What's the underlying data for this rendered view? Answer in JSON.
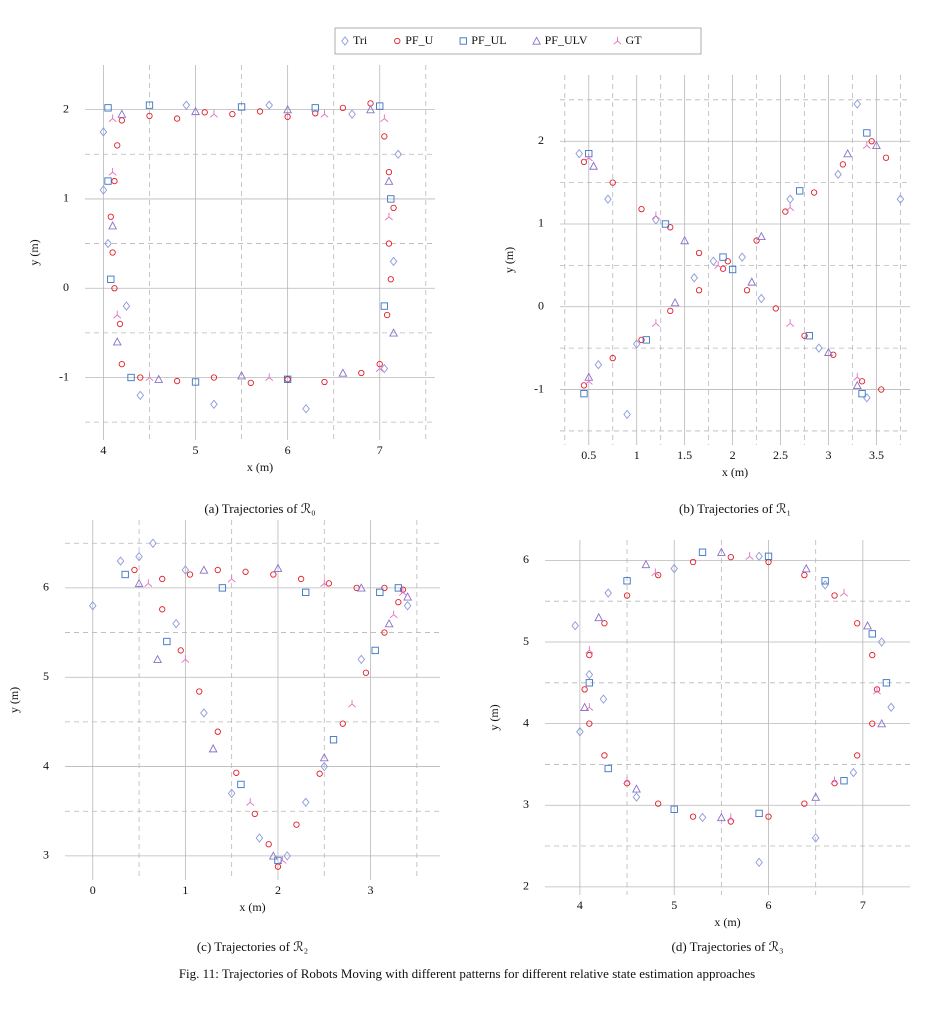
{
  "caption": "Fig. 11: Trajectories of Robots Moving with different patterns for different relative state estimation approaches",
  "chart_data": [
    {
      "type": "scatter",
      "caption": "(a) Trajectories of ℛ₀",
      "xlabel": "x (m)",
      "ylabel": "y (m)",
      "xlim": [
        3.8,
        7.6
      ],
      "ylim": [
        -1.7,
        2.5
      ],
      "xticks": [
        4,
        5,
        6,
        7
      ],
      "yticks": [
        -1,
        0,
        1,
        2
      ],
      "xminor": [
        4.5,
        5.5,
        6.5,
        7.5
      ],
      "yminor": [
        -1.5,
        -0.5,
        0.5,
        1.5
      ],
      "grid": true,
      "series": [
        {
          "name": "Tri",
          "color": "#8c9ad8",
          "marker": "diamond",
          "x": [
            4.0,
            4.05,
            4.9,
            5.8,
            6.7,
            7.2,
            7.15,
            7.05,
            6.2,
            5.2,
            4.4,
            4.25,
            4.0
          ],
          "y": [
            1.75,
            0.5,
            2.05,
            2.05,
            1.95,
            1.5,
            0.3,
            -0.9,
            -1.35,
            -1.3,
            -1.2,
            -0.2,
            1.1
          ]
        },
        {
          "name": "PF_U",
          "color": "#e0202a",
          "marker": "circle",
          "x": [
            4.2,
            4.5,
            4.8,
            5.1,
            5.4,
            5.7,
            6.0,
            6.3,
            6.6,
            6.9,
            7.05,
            7.1,
            7.15,
            7.1,
            7.12,
            7.08,
            7.0,
            6.8,
            6.4,
            6.0,
            5.6,
            5.2,
            4.8,
            4.4,
            4.2,
            4.18,
            4.12,
            4.1,
            4.08,
            4.12,
            4.15
          ],
          "y": [
            1.88,
            1.93,
            1.9,
            1.97,
            1.95,
            1.98,
            1.92,
            1.96,
            2.02,
            2.07,
            1.7,
            1.3,
            0.9,
            0.5,
            0.1,
            -0.3,
            -0.85,
            -0.95,
            -1.05,
            -1.02,
            -1.06,
            -1.0,
            -1.04,
            -1.0,
            -0.85,
            -0.4,
            0,
            0.4,
            0.8,
            1.2,
            1.6
          ]
        },
        {
          "name": "PF_UL",
          "color": "#3a72c4",
          "marker": "square",
          "x": [
            4.05,
            4.5,
            5.5,
            6.3,
            7.0,
            7.12,
            7.05,
            6.0,
            5.0,
            4.3,
            4.08,
            4.05
          ],
          "y": [
            2.02,
            2.05,
            2.03,
            2.02,
            2.04,
            1.0,
            -0.2,
            -1.02,
            -1.05,
            -1.0,
            0.1,
            1.2
          ]
        },
        {
          "name": "PF_ULV",
          "color": "#8a70c8",
          "marker": "triangle",
          "x": [
            4.2,
            5.0,
            6.0,
            6.9,
            7.1,
            7.15,
            6.6,
            5.5,
            4.6,
            4.15,
            4.1
          ],
          "y": [
            1.95,
            1.98,
            2.0,
            2.0,
            1.2,
            -0.5,
            -0.95,
            -0.98,
            -1.02,
            -0.6,
            0.7
          ]
        },
        {
          "name": "GT",
          "color": "#e070c0",
          "marker": "tri",
          "x": [
            4.1,
            5.2,
            6.4,
            7.05,
            7.1,
            7.0,
            5.8,
            4.5,
            4.15,
            4.1
          ],
          "y": [
            1.9,
            1.95,
            1.95,
            1.9,
            0.8,
            -0.9,
            -1.0,
            -1.0,
            -0.3,
            1.3
          ]
        }
      ]
    },
    {
      "type": "scatter",
      "caption": "(b) Trajectories of ℛ₁",
      "xlabel": "x (m)",
      "ylabel": "y (m)",
      "xlim": [
        0.2,
        3.85
      ],
      "ylim": [
        -1.67,
        2.8
      ],
      "xticks": [
        0.5,
        1,
        1.5,
        2,
        2.5,
        3,
        3.5
      ],
      "yticks": [
        -1,
        0,
        1,
        2
      ],
      "xminor": [
        0.25,
        0.75,
        1.25,
        1.75,
        2.25,
        2.75,
        3.25,
        3.75
      ],
      "yminor": [
        -1.5,
        -0.5,
        0.5,
        1.5,
        2.5
      ],
      "grid": true,
      "series": [
        {
          "color": "#8c9ad8",
          "marker": "diamond",
          "x": [
            0.4,
            0.7,
            1.2,
            1.8,
            2.3,
            2.9,
            3.4,
            3.75,
            0.6,
            1.0,
            1.6,
            2.1,
            2.6,
            3.1,
            3.3,
            0.9
          ],
          "y": [
            1.85,
            1.3,
            1.05,
            0.55,
            0.1,
            -0.5,
            -1.1,
            1.3,
            -0.7,
            -0.45,
            0.35,
            0.6,
            1.3,
            1.6,
            2.45,
            -1.3
          ]
        },
        {
          "color": "#e0202a",
          "marker": "circle",
          "x": [
            0.45,
            0.75,
            1.05,
            1.35,
            1.65,
            1.9,
            2.15,
            2.45,
            2.75,
            3.05,
            3.35,
            3.55,
            0.45,
            0.75,
            1.05,
            1.35,
            1.65,
            1.95,
            2.25,
            2.55,
            2.85,
            3.15,
            3.45,
            3.6
          ],
          "y": [
            1.75,
            1.5,
            1.18,
            0.96,
            0.65,
            0.46,
            0.2,
            -0.02,
            -0.35,
            -0.58,
            -0.9,
            -1.0,
            -0.95,
            -0.62,
            -0.4,
            -0.05,
            0.2,
            0.55,
            0.8,
            1.15,
            1.38,
            1.72,
            2.0,
            1.8
          ]
        },
        {
          "color": "#3a72c4",
          "marker": "square",
          "x": [
            0.5,
            1.3,
            2.0,
            2.8,
            3.35,
            0.45,
            1.1,
            1.9,
            2.7,
            3.4
          ],
          "y": [
            1.85,
            1.0,
            0.45,
            -0.35,
            -1.05,
            -1.05,
            -0.4,
            0.6,
            1.4,
            2.1
          ]
        },
        {
          "color": "#8a70c8",
          "marker": "triangle",
          "x": [
            0.55,
            1.5,
            2.2,
            3.0,
            3.3,
            0.5,
            1.4,
            2.3,
            3.2,
            3.5
          ],
          "y": [
            1.7,
            0.8,
            0.3,
            -0.55,
            -0.95,
            -0.85,
            0.05,
            0.85,
            1.85,
            1.95
          ]
        },
        {
          "color": "#e070c0",
          "marker": "tri",
          "x": [
            0.5,
            1.2,
            1.85,
            2.6,
            3.3,
            0.5,
            1.2,
            2.6,
            3.4
          ],
          "y": [
            1.8,
            1.1,
            0.5,
            -0.2,
            -0.85,
            -0.9,
            -0.2,
            1.2,
            1.95
          ]
        }
      ]
    },
    {
      "type": "scatter",
      "caption": "(c) Trajectories of ℛ₂",
      "xlabel": "x (m)",
      "ylabel": "y (m)",
      "xlim": [
        -0.3,
        3.75
      ],
      "ylim": [
        2.73,
        6.76
      ],
      "xticks": [
        0,
        1,
        2,
        3
      ],
      "yticks": [
        3,
        4,
        5,
        6
      ],
      "xminor": [
        0.5,
        1.5,
        2.5,
        3.5
      ],
      "yminor": [
        3.5,
        4.5,
        5.5,
        6.5
      ],
      "grid": true,
      "series": [
        {
          "color": "#8c9ad8",
          "marker": "diamond",
          "x": [
            0.3,
            0.5,
            0.65,
            0.9,
            1.2,
            1.5,
            1.8,
            2.1,
            2.5,
            2.9,
            3.4,
            1.0,
            0.0,
            2.3
          ],
          "y": [
            6.3,
            6.35,
            6.5,
            5.6,
            4.6,
            3.7,
            3.2,
            3.0,
            4.0,
            5.2,
            5.8,
            6.2,
            5.8,
            3.6
          ]
        },
        {
          "color": "#e0202a",
          "marker": "circle",
          "x": [
            0.45,
            0.75,
            1.05,
            1.35,
            1.65,
            1.95,
            2.25,
            2.55,
            2.85,
            3.15,
            3.35,
            0.75,
            0.95,
            1.15,
            1.35,
            1.55,
            1.75,
            1.9,
            2.0,
            2.2,
            2.45,
            2.7,
            2.95,
            3.15,
            3.3
          ],
          "y": [
            6.2,
            6.1,
            6.15,
            6.2,
            6.18,
            6.15,
            6.1,
            6.05,
            6.0,
            6.0,
            5.98,
            5.76,
            5.3,
            4.84,
            4.39,
            3.93,
            3.47,
            3.13,
            2.88,
            3.35,
            3.92,
            4.48,
            5.05,
            5.5,
            5.84
          ]
        },
        {
          "color": "#3a72c4",
          "marker": "square",
          "x": [
            0.35,
            1.4,
            2.3,
            3.1,
            3.3,
            0.8,
            1.6,
            2.0,
            2.6,
            3.05
          ],
          "y": [
            6.15,
            6.0,
            5.95,
            5.95,
            6.0,
            5.4,
            3.8,
            2.95,
            4.3,
            5.3
          ]
        },
        {
          "color": "#8a70c8",
          "marker": "triangle",
          "x": [
            0.5,
            1.2,
            2.0,
            2.9,
            3.4,
            0.7,
            1.3,
            1.95,
            2.5,
            3.2
          ],
          "y": [
            6.05,
            6.2,
            6.22,
            6.0,
            5.9,
            5.2,
            4.2,
            3.0,
            4.1,
            5.6
          ]
        },
        {
          "color": "#e070c0",
          "marker": "tri",
          "x": [
            0.6,
            1.5,
            2.5,
            3.35,
            1.0,
            1.7,
            2.05,
            2.8,
            3.25
          ],
          "y": [
            6.05,
            6.1,
            6.05,
            5.95,
            5.2,
            3.6,
            2.95,
            4.7,
            5.7
          ]
        }
      ]
    },
    {
      "type": "scatter",
      "caption": "(d) Trajectories of ℛ₃",
      "xlabel": "x (m)",
      "ylabel": "y (m)",
      "xlim": [
        3.63,
        7.5
      ],
      "ylim": [
        1.9,
        6.25
      ],
      "xticks": [
        4,
        5,
        6,
        7
      ],
      "yticks": [
        2,
        3,
        4,
        5,
        6
      ],
      "xminor": [
        4.5,
        5.5,
        6.5
      ],
      "yminor": [
        2.5,
        3.5,
        4.5,
        5.5
      ],
      "grid": true,
      "series": [
        {
          "color": "#8c9ad8",
          "marker": "diamond",
          "x": [
            3.95,
            4.1,
            4.3,
            5.0,
            5.9,
            6.6,
            7.2,
            7.3,
            6.9,
            6.5,
            5.9,
            5.3,
            4.6,
            4.0,
            4.25
          ],
          "y": [
            5.2,
            4.6,
            5.6,
            5.9,
            6.05,
            5.7,
            5.0,
            4.2,
            3.4,
            2.6,
            2.3,
            2.85,
            3.1,
            3.9,
            4.3
          ]
        },
        {
          "color": "#e0202a",
          "marker": "circle",
          "x": [
            7.15,
            7.1,
            6.94,
            6.7,
            6.38,
            6.0,
            5.6,
            5.2,
            4.83,
            4.5,
            4.26,
            4.1,
            4.05,
            4.1,
            4.26,
            4.5,
            4.83,
            5.2,
            5.6,
            6.0,
            6.38,
            6.7,
            6.94,
            7.1
          ],
          "y": [
            4.42,
            4.84,
            5.23,
            5.57,
            5.82,
            5.98,
            6.04,
            5.98,
            5.82,
            5.57,
            5.23,
            4.84,
            4.42,
            4.0,
            3.61,
            3.27,
            3.02,
            2.86,
            2.8,
            2.86,
            3.02,
            3.27,
            3.61,
            4.0
          ]
        },
        {
          "color": "#3a72c4",
          "marker": "square",
          "x": [
            4.1,
            4.5,
            5.3,
            6.0,
            6.6,
            7.1,
            7.25,
            6.8,
            5.9,
            5.0,
            4.3
          ],
          "y": [
            4.5,
            5.75,
            6.1,
            6.05,
            5.75,
            5.1,
            4.5,
            3.3,
            2.9,
            2.95,
            3.45
          ]
        },
        {
          "color": "#8a70c8",
          "marker": "triangle",
          "x": [
            4.2,
            4.7,
            5.5,
            6.4,
            7.05,
            7.2,
            6.5,
            5.5,
            4.6,
            4.05
          ],
          "y": [
            5.3,
            5.95,
            6.1,
            5.9,
            5.2,
            4.0,
            3.1,
            2.85,
            3.2,
            4.2
          ]
        },
        {
          "color": "#e070c0",
          "marker": "tri",
          "x": [
            4.1,
            4.8,
            5.8,
            6.8,
            7.15,
            6.7,
            5.6,
            4.5,
            4.1
          ],
          "y": [
            4.9,
            5.85,
            6.05,
            5.6,
            4.4,
            3.3,
            2.85,
            3.3,
            4.2
          ]
        }
      ]
    }
  ]
}
